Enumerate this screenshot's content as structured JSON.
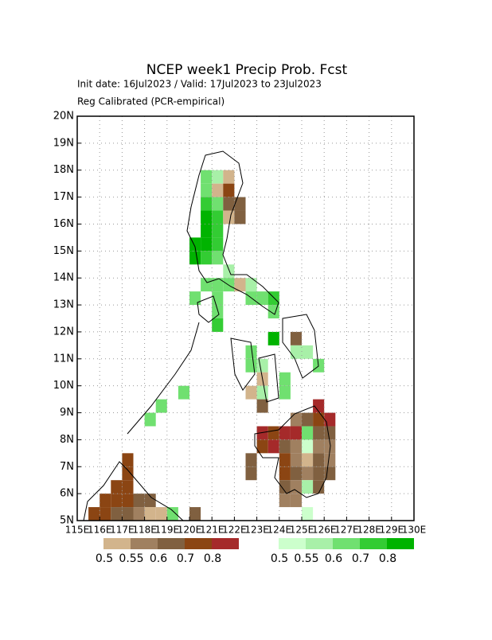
{
  "chart_data": {
    "type": "map",
    "title": "NCEP week1 Precip Prob. Fcst",
    "subtitle": "Init date: 16Jul2023 / Valid: 17Jul2023 to 23Jul2023",
    "note": "Reg Calibrated (PCR-empirical)",
    "xlim": [
      115,
      130
    ],
    "ylim": [
      5,
      20
    ],
    "xticks": [
      {
        "value": 115,
        "label": "115E"
      },
      {
        "value": 116,
        "label": "116E"
      },
      {
        "value": 117,
        "label": "117E"
      },
      {
        "value": 118,
        "label": "118E"
      },
      {
        "value": 119,
        "label": "119E"
      },
      {
        "value": 120,
        "label": "120E"
      },
      {
        "value": 121,
        "label": "121E"
      },
      {
        "value": 122,
        "label": "122E"
      },
      {
        "value": 123,
        "label": "123E"
      },
      {
        "value": 124,
        "label": "124E"
      },
      {
        "value": 125,
        "label": "125E"
      },
      {
        "value": 126,
        "label": "126E"
      },
      {
        "value": 127,
        "label": "127E"
      },
      {
        "value": 128,
        "label": "128E"
      },
      {
        "value": 129,
        "label": "129E"
      },
      {
        "value": 130,
        "label": "130E"
      }
    ],
    "yticks": [
      {
        "value": 5,
        "label": "5N"
      },
      {
        "value": 6,
        "label": "6N"
      },
      {
        "value": 7,
        "label": "7N"
      },
      {
        "value": 8,
        "label": "8N"
      },
      {
        "value": 9,
        "label": "9N"
      },
      {
        "value": 10,
        "label": "10N"
      },
      {
        "value": 11,
        "label": "11N"
      },
      {
        "value": 12,
        "label": "12N"
      },
      {
        "value": 13,
        "label": "13N"
      },
      {
        "value": 14,
        "label": "14N"
      },
      {
        "value": 15,
        "label": "15N"
      },
      {
        "value": 16,
        "label": "16N"
      },
      {
        "value": 17,
        "label": "17N"
      },
      {
        "value": 18,
        "label": "18N"
      },
      {
        "value": 19,
        "label": "19N"
      },
      {
        "value": 20,
        "label": "20N"
      }
    ],
    "grid": true,
    "cell_size": 0.5,
    "legends": [
      {
        "colors": [
          "#d2b48c",
          "#a08060",
          "#806040",
          "#8b4513",
          "#a52a2a"
        ],
        "labels": [
          0.5,
          0.55,
          0.6,
          0.7,
          0.8
        ]
      },
      {
        "colors": [
          "#ccffcc",
          "#a8f0a8",
          "#70e070",
          "#33cc33",
          "#00b300"
        ],
        "labels": [
          0.5,
          0.55,
          0.6,
          0.7,
          0.8
        ]
      }
    ],
    "cells": [
      {
        "lon": 120.5,
        "lat": 17.5,
        "color": "#70e070"
      },
      {
        "lon": 121.0,
        "lat": 17.5,
        "color": "#a8f0a8"
      },
      {
        "lon": 121.5,
        "lat": 17.5,
        "color": "#d2b48c"
      },
      {
        "lon": 120.5,
        "lat": 17.0,
        "color": "#70e070"
      },
      {
        "lon": 121.0,
        "lat": 17.0,
        "color": "#d2b48c"
      },
      {
        "lon": 121.5,
        "lat": 17.0,
        "color": "#8b4513"
      },
      {
        "lon": 120.5,
        "lat": 16.5,
        "color": "#33cc33"
      },
      {
        "lon": 121.0,
        "lat": 16.5,
        "color": "#70e070"
      },
      {
        "lon": 121.5,
        "lat": 16.5,
        "color": "#806040"
      },
      {
        "lon": 122.0,
        "lat": 16.5,
        "color": "#806040"
      },
      {
        "lon": 120.5,
        "lat": 16.0,
        "color": "#00b300"
      },
      {
        "lon": 121.0,
        "lat": 16.0,
        "color": "#33cc33"
      },
      {
        "lon": 121.5,
        "lat": 16.0,
        "color": "#d2b48c"
      },
      {
        "lon": 122.0,
        "lat": 16.0,
        "color": "#806040"
      },
      {
        "lon": 120.5,
        "lat": 15.5,
        "color": "#00b300"
      },
      {
        "lon": 121.0,
        "lat": 15.5,
        "color": "#33cc33"
      },
      {
        "lon": 120.0,
        "lat": 15.0,
        "color": "#00b300"
      },
      {
        "lon": 120.5,
        "lat": 15.0,
        "color": "#00b300"
      },
      {
        "lon": 121.0,
        "lat": 15.0,
        "color": "#33cc33"
      },
      {
        "lon": 120.0,
        "lat": 14.5,
        "color": "#00b300"
      },
      {
        "lon": 120.5,
        "lat": 14.5,
        "color": "#33cc33"
      },
      {
        "lon": 121.0,
        "lat": 14.5,
        "color": "#70e070"
      },
      {
        "lon": 121.5,
        "lat": 14.0,
        "color": "#a8f0a8"
      },
      {
        "lon": 120.5,
        "lat": 13.5,
        "color": "#70e070"
      },
      {
        "lon": 121.0,
        "lat": 13.5,
        "color": "#70e070"
      },
      {
        "lon": 121.5,
        "lat": 13.5,
        "color": "#70e070"
      },
      {
        "lon": 122.0,
        "lat": 13.5,
        "color": "#d2b48c"
      },
      {
        "lon": 122.5,
        "lat": 13.5,
        "color": "#a8f0a8"
      },
      {
        "lon": 120.0,
        "lat": 13.0,
        "color": "#70e070"
      },
      {
        "lon": 121.0,
        "lat": 13.0,
        "color": "#70e070"
      },
      {
        "lon": 122.5,
        "lat": 13.0,
        "color": "#70e070"
      },
      {
        "lon": 123.0,
        "lat": 13.0,
        "color": "#70e070"
      },
      {
        "lon": 123.5,
        "lat": 13.0,
        "color": "#33cc33"
      },
      {
        "lon": 121.0,
        "lat": 12.5,
        "color": "#70e070"
      },
      {
        "lon": 123.5,
        "lat": 12.5,
        "color": "#70e070"
      },
      {
        "lon": 121.0,
        "lat": 12.0,
        "color": "#33cc33"
      },
      {
        "lon": 123.5,
        "lat": 11.5,
        "color": "#00b300"
      },
      {
        "lon": 124.5,
        "lat": 11.5,
        "color": "#806040"
      },
      {
        "lon": 122.5,
        "lat": 11.0,
        "color": "#70e070"
      },
      {
        "lon": 124.5,
        "lat": 11.0,
        "color": "#a8f0a8"
      },
      {
        "lon": 125.0,
        "lat": 11.0,
        "color": "#a8f0a8"
      },
      {
        "lon": 122.5,
        "lat": 10.5,
        "color": "#70e070"
      },
      {
        "lon": 123.0,
        "lat": 10.5,
        "color": "#a8f0a8"
      },
      {
        "lon": 125.5,
        "lat": 10.5,
        "color": "#70e070"
      },
      {
        "lon": 123.0,
        "lat": 10.0,
        "color": "#d2b48c"
      },
      {
        "lon": 124.0,
        "lat": 10.0,
        "color": "#70e070"
      },
      {
        "lon": 122.5,
        "lat": 9.5,
        "color": "#d2b48c"
      },
      {
        "lon": 123.0,
        "lat": 9.5,
        "color": "#a8f0a8"
      },
      {
        "lon": 124.0,
        "lat": 9.5,
        "color": "#70e070"
      },
      {
        "lon": 123.0,
        "lat": 9.0,
        "color": "#806040"
      },
      {
        "lon": 125.5,
        "lat": 9.0,
        "color": "#a52a2a"
      },
      {
        "lon": 124.5,
        "lat": 8.5,
        "color": "#a08060"
      },
      {
        "lon": 125.0,
        "lat": 8.5,
        "color": "#806040"
      },
      {
        "lon": 125.5,
        "lat": 8.5,
        "color": "#8b4513"
      },
      {
        "lon": 126.0,
        "lat": 8.5,
        "color": "#a52a2a"
      },
      {
        "lon": 123.0,
        "lat": 8.0,
        "color": "#a52a2a"
      },
      {
        "lon": 123.5,
        "lat": 8.0,
        "color": "#8b4513"
      },
      {
        "lon": 124.0,
        "lat": 8.0,
        "color": "#a52a2a"
      },
      {
        "lon": 124.5,
        "lat": 8.0,
        "color": "#a52a2a"
      },
      {
        "lon": 125.0,
        "lat": 8.0,
        "color": "#70e070"
      },
      {
        "lon": 125.5,
        "lat": 8.0,
        "color": "#806040"
      },
      {
        "lon": 126.0,
        "lat": 8.0,
        "color": "#806040"
      },
      {
        "lon": 123.0,
        "lat": 7.5,
        "color": "#8b4513"
      },
      {
        "lon": 123.5,
        "lat": 7.5,
        "color": "#a52a2a"
      },
      {
        "lon": 124.0,
        "lat": 7.5,
        "color": "#806040"
      },
      {
        "lon": 124.5,
        "lat": 7.5,
        "color": "#a08060"
      },
      {
        "lon": 125.0,
        "lat": 7.5,
        "color": "#ccffcc"
      },
      {
        "lon": 125.5,
        "lat": 7.5,
        "color": "#a08060"
      },
      {
        "lon": 126.0,
        "lat": 7.5,
        "color": "#a08060"
      },
      {
        "lon": 122.5,
        "lat": 7.0,
        "color": "#806040"
      },
      {
        "lon": 124.0,
        "lat": 7.0,
        "color": "#8b4513"
      },
      {
        "lon": 124.5,
        "lat": 7.0,
        "color": "#a08060"
      },
      {
        "lon": 125.0,
        "lat": 7.0,
        "color": "#d2b48c"
      },
      {
        "lon": 125.5,
        "lat": 7.0,
        "color": "#806040"
      },
      {
        "lon": 126.0,
        "lat": 7.0,
        "color": "#a08060"
      },
      {
        "lon": 122.5,
        "lat": 6.5,
        "color": "#806040"
      },
      {
        "lon": 124.0,
        "lat": 6.5,
        "color": "#8b4513"
      },
      {
        "lon": 124.5,
        "lat": 6.5,
        "color": "#806040"
      },
      {
        "lon": 125.0,
        "lat": 6.5,
        "color": "#a08060"
      },
      {
        "lon": 125.5,
        "lat": 6.5,
        "color": "#806040"
      },
      {
        "lon": 126.0,
        "lat": 6.5,
        "color": "#806040"
      },
      {
        "lon": 124.0,
        "lat": 6.0,
        "color": "#806040"
      },
      {
        "lon": 124.5,
        "lat": 6.0,
        "color": "#a08060"
      },
      {
        "lon": 125.0,
        "lat": 6.0,
        "color": "#a8f0a8"
      },
      {
        "lon": 125.5,
        "lat": 6.0,
        "color": "#806040"
      },
      {
        "lon": 124.0,
        "lat": 5.5,
        "color": "#a08060"
      },
      {
        "lon": 124.5,
        "lat": 5.5,
        "color": "#a08060"
      },
      {
        "lon": 125.0,
        "lat": 5.0,
        "color": "#ccffcc"
      },
      {
        "lon": 119.5,
        "lat": 9.5,
        "color": "#70e070"
      },
      {
        "lon": 118.5,
        "lat": 9.0,
        "color": "#70e070"
      },
      {
        "lon": 118.0,
        "lat": 8.5,
        "color": "#70e070"
      },
      {
        "lon": 117.0,
        "lat": 7.0,
        "color": "#8b4513"
      },
      {
        "lon": 117.0,
        "lat": 6.5,
        "color": "#8b4513"
      },
      {
        "lon": 116.5,
        "lat": 6.0,
        "color": "#8b4513"
      },
      {
        "lon": 117.0,
        "lat": 6.0,
        "color": "#8b4513"
      },
      {
        "lon": 116.0,
        "lat": 5.5,
        "color": "#8b4513"
      },
      {
        "lon": 116.5,
        "lat": 5.5,
        "color": "#8b4513"
      },
      {
        "lon": 117.0,
        "lat": 5.5,
        "color": "#8b4513"
      },
      {
        "lon": 117.5,
        "lat": 5.5,
        "color": "#806040"
      },
      {
        "lon": 118.0,
        "lat": 5.5,
        "color": "#806040"
      },
      {
        "lon": 115.5,
        "lat": 5.0,
        "color": "#8b4513"
      },
      {
        "lon": 116.0,
        "lat": 5.0,
        "color": "#8b4513"
      },
      {
        "lon": 116.5,
        "lat": 5.0,
        "color": "#806040"
      },
      {
        "lon": 117.0,
        "lat": 5.0,
        "color": "#806040"
      },
      {
        "lon": 117.5,
        "lat": 5.0,
        "color": "#a08060"
      },
      {
        "lon": 118.0,
        "lat": 5.0,
        "color": "#d2b48c"
      },
      {
        "lon": 118.5,
        "lat": 5.0,
        "color": "#d2b48c"
      },
      {
        "lon": 119.0,
        "lat": 5.0,
        "color": "#70e070"
      },
      {
        "lon": 120.0,
        "lat": 5.0,
        "color": "#806040"
      }
    ]
  }
}
